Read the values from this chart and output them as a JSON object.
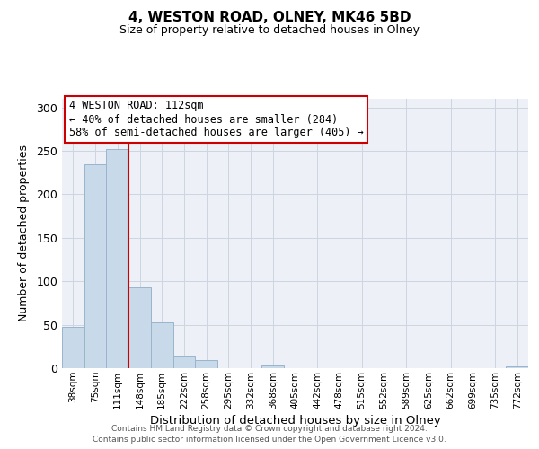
{
  "title": "4, WESTON ROAD, OLNEY, MK46 5BD",
  "subtitle": "Size of property relative to detached houses in Olney",
  "xlabel": "Distribution of detached houses by size in Olney",
  "ylabel": "Number of detached properties",
  "bar_labels": [
    "38sqm",
    "75sqm",
    "111sqm",
    "148sqm",
    "185sqm",
    "222sqm",
    "258sqm",
    "295sqm",
    "332sqm",
    "368sqm",
    "405sqm",
    "442sqm",
    "478sqm",
    "515sqm",
    "552sqm",
    "589sqm",
    "625sqm",
    "662sqm",
    "699sqm",
    "735sqm",
    "772sqm"
  ],
  "bar_heights": [
    48,
    235,
    252,
    93,
    53,
    14,
    9,
    0,
    0,
    3,
    0,
    0,
    0,
    0,
    0,
    0,
    0,
    0,
    0,
    0,
    2
  ],
  "bar_color": "#c8d9ea",
  "bar_edge_color": "#9ab4cc",
  "vline_x_index": 2,
  "vline_color": "#cc0000",
  "ylim": [
    0,
    310
  ],
  "yticks": [
    0,
    50,
    100,
    150,
    200,
    250,
    300
  ],
  "annotation_title": "4 WESTON ROAD: 112sqm",
  "annotation_line1": "← 40% of detached houses are smaller (284)",
  "annotation_line2": "58% of semi-detached houses are larger (405) →",
  "annotation_box_edge_color": "#cc0000",
  "footer_line1": "Contains HM Land Registry data © Crown copyright and database right 2024.",
  "footer_line2": "Contains public sector information licensed under the Open Government Licence v3.0.",
  "grid_color": "#ccd5e0",
  "background_color": "#edf1f7",
  "title_fontsize": 11,
  "subtitle_fontsize": 9
}
